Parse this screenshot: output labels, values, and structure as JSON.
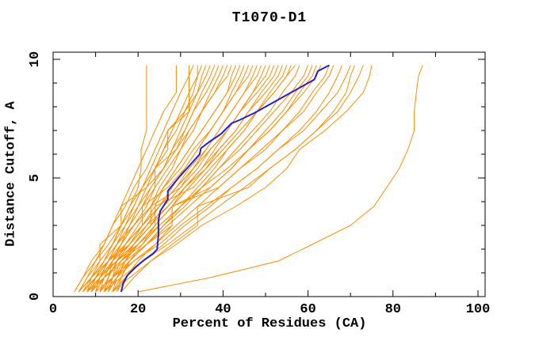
{
  "chart_data": {
    "type": "line",
    "title": "T1070-D1",
    "xlabel": "Percent of Residues (CA)",
    "ylabel": "Distance Cutoff, A",
    "xlim": [
      0,
      100
    ],
    "ylim": [
      0,
      10
    ],
    "grid": "off",
    "legend": "none",
    "x_major_ticks": [
      0,
      20,
      40,
      60,
      80,
      100
    ],
    "x_major_tick_labels": [
      "0",
      "20",
      "40",
      "60",
      "80",
      "100"
    ],
    "x_minor_ticks": [
      10,
      30,
      50,
      70,
      90
    ],
    "top_ticks": [
      10,
      20,
      30,
      40,
      50,
      60,
      70,
      80,
      90
    ],
    "y_tick_labels": [
      {
        "v": 0,
        "label": "0"
      },
      {
        "v": 5,
        "label": "5"
      },
      {
        "v": 10,
        "label": "10"
      }
    ],
    "y_major_ticks": [
      5,
      10
    ],
    "y_minor_ticks": [
      1,
      2,
      3,
      4,
      6,
      7,
      8,
      9
    ],
    "colors": {
      "model_lines": "#ff8c00",
      "highlight_line": "#2222cc",
      "axis": "#000000",
      "background": "#ffffff"
    },
    "shared_y_levels": [
      0.2,
      0.8,
      1.5,
      2.2,
      3.0,
      3.8,
      4.6,
      5.4,
      6.2,
      7.0,
      7.8,
      8.6,
      9.3,
      9.75
    ],
    "model_series_xs": [
      [
        8,
        10,
        12,
        14,
        16,
        18,
        20,
        20.7,
        20.7,
        22,
        22,
        22,
        22,
        22
      ],
      [
        6,
        8,
        10,
        12,
        14,
        16,
        18,
        20,
        22,
        24,
        26,
        29,
        29,
        29
      ],
      [
        9,
        11,
        13,
        15,
        17,
        19,
        21,
        23,
        25,
        27,
        32,
        32,
        32,
        32
      ],
      [
        5,
        7,
        9,
        12,
        14,
        17,
        19,
        22,
        24,
        26,
        28,
        30,
        32,
        33
      ],
      [
        10,
        11,
        13,
        15,
        18,
        20,
        22,
        24,
        26,
        29,
        31,
        33,
        34,
        34
      ],
      [
        8,
        9,
        11,
        14,
        16,
        19,
        21,
        24,
        26,
        28,
        30,
        32,
        34,
        35
      ],
      [
        12,
        13,
        14,
        16,
        18,
        21,
        23,
        26,
        28,
        30,
        32,
        34,
        35,
        36
      ],
      [
        6,
        8,
        11,
        11,
        16,
        18,
        21,
        24,
        27,
        27,
        31,
        34,
        36,
        37
      ],
      [
        11,
        12,
        14,
        16,
        19,
        22,
        24,
        24,
        29,
        31,
        33,
        35,
        37,
        38
      ],
      [
        7,
        9,
        12,
        14,
        17,
        20,
        23,
        26,
        28,
        31,
        33,
        36,
        38,
        39
      ],
      [
        13,
        14,
        15,
        17,
        20,
        23,
        25,
        28,
        30,
        33,
        35,
        37,
        39,
        40
      ],
      [
        9,
        10,
        13,
        16,
        18,
        21,
        24,
        27,
        30,
        32,
        35,
        38,
        40,
        41
      ],
      [
        5,
        7,
        10,
        13,
        16,
        16,
        22,
        26,
        29,
        32,
        35,
        38,
        41,
        42
      ],
      [
        12,
        13,
        15,
        18,
        21,
        24,
        26,
        29,
        32,
        35,
        38,
        41,
        42,
        43
      ],
      [
        8,
        10,
        13,
        16,
        19,
        23,
        26,
        29,
        32,
        35,
        38,
        41,
        43,
        44
      ],
      [
        14,
        15,
        17,
        19,
        22,
        25,
        28,
        31,
        34,
        37,
        40,
        42,
        44,
        45
      ],
      [
        10,
        12,
        14,
        17,
        21,
        21,
        27,
        31,
        34,
        37,
        40,
        43,
        45,
        46
      ],
      [
        6,
        9,
        12,
        15,
        19,
        23,
        26,
        30,
        33,
        37,
        40,
        43,
        46,
        47
      ],
      [
        13,
        14,
        16,
        19,
        23,
        26,
        30,
        33,
        36,
        39,
        42,
        45,
        47,
        48
      ],
      [
        9,
        11,
        14,
        18,
        21,
        25,
        29,
        32,
        36,
        39,
        42,
        45,
        48,
        49
      ],
      [
        15,
        16,
        18,
        21,
        24,
        28,
        31,
        35,
        38,
        41,
        44,
        47,
        49,
        50
      ],
      [
        11,
        13,
        15,
        19,
        23,
        23,
        30,
        34,
        37,
        41,
        44,
        47,
        50,
        51
      ],
      [
        7,
        10,
        13,
        17,
        21,
        25,
        29,
        33,
        37,
        41,
        44,
        48,
        51,
        52
      ],
      [
        12,
        14,
        17,
        20,
        24,
        28,
        32,
        36,
        39,
        43,
        46,
        49,
        52,
        53
      ],
      [
        8,
        11,
        15,
        19,
        23,
        27,
        31,
        35,
        39,
        43,
        46,
        50,
        53,
        54
      ],
      [
        14,
        16,
        18,
        22,
        26,
        30,
        34,
        38,
        41,
        45,
        48,
        51,
        54,
        55
      ],
      [
        10,
        12,
        16,
        20,
        24,
        24,
        33,
        37,
        41,
        45,
        48,
        52,
        55,
        56
      ],
      [
        6,
        9,
        13,
        18,
        22,
        27,
        31,
        36,
        40,
        44,
        48,
        52,
        55,
        57
      ],
      [
        13,
        15,
        18,
        22,
        26,
        31,
        35,
        39,
        43,
        47,
        51,
        54,
        57,
        58
      ],
      [
        9,
        12,
        16,
        21,
        25,
        30,
        35,
        39,
        44,
        48,
        52,
        56,
        59,
        60
      ],
      [
        15,
        17,
        20,
        24,
        28,
        28,
        37,
        42,
        46,
        50,
        54,
        57,
        60,
        61
      ],
      [
        11,
        14,
        18,
        22,
        27,
        32,
        37,
        42,
        46,
        51,
        55,
        58,
        61,
        62
      ],
      [
        7,
        10,
        15,
        20,
        25,
        30,
        35,
        41,
        46,
        51,
        55,
        59,
        62,
        63
      ],
      [
        12,
        15,
        19,
        24,
        29,
        34,
        39,
        44,
        49,
        54,
        58,
        61,
        64,
        65
      ],
      [
        8,
        12,
        17,
        22,
        28,
        28,
        39,
        44,
        50,
        54,
        59,
        62,
        65,
        66
      ],
      [
        14,
        17,
        21,
        26,
        31,
        37,
        42,
        48,
        53,
        58,
        62,
        65,
        67,
        68
      ],
      [
        10,
        14,
        19,
        25,
        30,
        36,
        42,
        48,
        53,
        59,
        63,
        67,
        69,
        70
      ],
      [
        16,
        19,
        23,
        28,
        34,
        34,
        46,
        51,
        57,
        62,
        66,
        69,
        70,
        71
      ],
      [
        12,
        16,
        21,
        27,
        33,
        39,
        45,
        51,
        57,
        62,
        67,
        70,
        72,
        73
      ],
      [
        14,
        18,
        23,
        29,
        35,
        43,
        50,
        55,
        58,
        64,
        69,
        73,
        74.5,
        75
      ],
      [
        20,
        37,
        53,
        61,
        70,
        75.5,
        78.5,
        81.5,
        83.5,
        85,
        85,
        85.5,
        86,
        87
      ]
    ],
    "highlight_series": {
      "points": [
        [
          16,
          0.2
        ],
        [
          16.5,
          0.55
        ],
        [
          17.5,
          0.9
        ],
        [
          19.5,
          1.25
        ],
        [
          21.5,
          1.55
        ],
        [
          23.5,
          1.8
        ],
        [
          24.5,
          2.0
        ],
        [
          24.8,
          2.6
        ],
        [
          24.8,
          3.2
        ],
        [
          25.2,
          3.6
        ],
        [
          27,
          4.1
        ],
        [
          27,
          4.45
        ],
        [
          29.5,
          5.0
        ],
        [
          32,
          5.5
        ],
        [
          34.5,
          6.0
        ],
        [
          34.8,
          6.25
        ],
        [
          37,
          6.55
        ],
        [
          39.5,
          6.85
        ],
        [
          42,
          7.3
        ],
        [
          44,
          7.45
        ],
        [
          47.5,
          7.75
        ],
        [
          51,
          8.1
        ],
        [
          55,
          8.5
        ],
        [
          58.5,
          8.85
        ],
        [
          61.5,
          9.15
        ],
        [
          62.3,
          9.5
        ],
        [
          65,
          9.75
        ]
      ]
    }
  }
}
